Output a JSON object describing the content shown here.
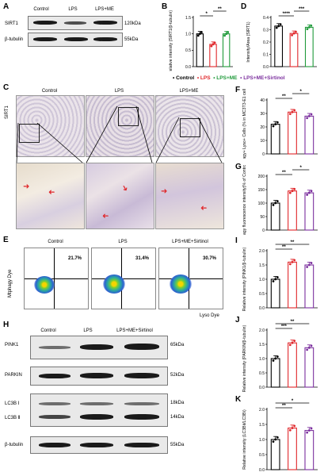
{
  "panels": {
    "A": {
      "letter": "A",
      "lanes": [
        "Control",
        "LPS",
        "LPS+ME"
      ],
      "rows": [
        {
          "label": "SIRT1",
          "kda": "120kDa"
        },
        {
          "label": "β-tubulin",
          "kda": "55kDa"
        }
      ]
    },
    "B": {
      "letter": "B"
    },
    "C": {
      "letter": "C",
      "row_label": "SIRT1",
      "titles": [
        "Control",
        "LPS",
        "LPS+ME"
      ]
    },
    "D": {
      "letter": "D"
    },
    "E": {
      "letter": "E",
      "titles": [
        "Control",
        "LPS",
        "LPS+ME+Sirtinol"
      ],
      "percents": [
        "21.7%",
        "31.4%",
        "30.7%"
      ],
      "ylabel": "Mtphagy Dye",
      "xlabel": "Lyso Dye"
    },
    "F": {
      "letter": "F"
    },
    "G": {
      "letter": "G"
    },
    "H": {
      "letter": "H",
      "lanes": [
        "Control",
        "LPS",
        "LPS+ME+Sirtinol"
      ],
      "rows": [
        {
          "label": "PINK1",
          "kda": "65kDa"
        },
        {
          "label": "PARKIN",
          "kda": "52kDa"
        },
        {
          "label": "LC3B Ⅰ",
          "kda": "18kDa"
        },
        {
          "label": "LC3B Ⅱ",
          "kda": "14kDa"
        },
        {
          "label": "β-tubulin",
          "kda": "55kDa"
        }
      ]
    },
    "I": {
      "letter": "I"
    },
    "J": {
      "letter": "J"
    },
    "K": {
      "letter": "K"
    }
  },
  "legend": [
    {
      "label": "Control",
      "color": "#000000"
    },
    {
      "label": "LPS",
      "color": "#e0272b"
    },
    {
      "label": "LPS+ME",
      "color": "#1f9a3a"
    },
    {
      "label": "LPS+ME+Sirtinol",
      "color": "#7b2f9e"
    }
  ],
  "colors": {
    "control": "#000000",
    "lps": "#e0272b",
    "me": "#1f9a3a",
    "sirtinol": "#7b2f9e"
  },
  "chart_data": [
    {
      "id": "B",
      "type": "bar",
      "ylabel": "Relative intensity (SIRT1/β-tubulin)",
      "ylim": [
        0,
        1.5
      ],
      "yticks": [
        "0.0",
        "0.5",
        "1.0",
        "1.5"
      ],
      "groups": [
        "Control",
        "LPS",
        "LPS+ME"
      ],
      "values": [
        1.0,
        0.68,
        1.0
      ],
      "colors": [
        "#000000",
        "#e0272b",
        "#1f9a3a"
      ],
      "sig": [
        {
          "from": 0,
          "to": 1,
          "text": "*"
        },
        {
          "from": 1,
          "to": 2,
          "text": "**"
        }
      ]
    },
    {
      "id": "D",
      "type": "bar",
      "ylabel": "Intensity/Area (SIRT1)",
      "ylim": [
        0,
        0.4
      ],
      "yticks": [
        "0.0",
        "0.1",
        "0.2",
        "0.3",
        "0.4"
      ],
      "groups": [
        "Control",
        "LPS",
        "LPS+ME"
      ],
      "values": [
        0.33,
        0.27,
        0.32
      ],
      "colors": [
        "#000000",
        "#e0272b",
        "#1f9a3a"
      ],
      "sig": [
        {
          "from": 0,
          "to": 1,
          "text": "****"
        },
        {
          "from": 1,
          "to": 2,
          "text": "***"
        }
      ]
    },
    {
      "id": "F",
      "type": "bar",
      "ylabel": "Mtphagy+ Lyso+ Cells (% in MC3T3-E1 cells)",
      "ylim": [
        0,
        40
      ],
      "yticks": [
        "0",
        "10",
        "20",
        "30",
        "40"
      ],
      "groups": [
        "Control",
        "LPS",
        "LPS+ME+Sirtinol"
      ],
      "values": [
        22,
        31,
        28
      ],
      "colors": [
        "#000000",
        "#e0272b",
        "#7b2f9e"
      ],
      "sig": [
        {
          "from": 0,
          "to": 1,
          "text": "**"
        },
        {
          "from": 1,
          "to": 2,
          "text": "*"
        }
      ]
    },
    {
      "id": "G",
      "type": "bar",
      "ylabel": "Mtphagy fluorescence intensity(% of Control)",
      "ylim": [
        0,
        200
      ],
      "yticks": [
        "0",
        "50",
        "100",
        "150",
        "200"
      ],
      "groups": [
        "Control",
        "LPS",
        "LPS+ME+Sirtinol"
      ],
      "values": [
        100,
        145,
        138
      ],
      "colors": [
        "#000000",
        "#e0272b",
        "#7b2f9e"
      ],
      "sig": [
        {
          "from": 0,
          "to": 1,
          "text": "**"
        },
        {
          "from": 1,
          "to": 2,
          "text": "*"
        }
      ]
    },
    {
      "id": "I",
      "type": "bar",
      "ylabel": "Relative intensity (PINK1/β-tubulin)",
      "ylim": [
        0,
        2.0
      ],
      "yticks": [
        "0.0",
        "0.5",
        "1.0",
        "1.5",
        "2.0"
      ],
      "groups": [
        "Control",
        "LPS",
        "LPS+ME+Sirtinol"
      ],
      "values": [
        1.0,
        1.6,
        1.5
      ],
      "colors": [
        "#000000",
        "#e0272b",
        "#7b2f9e"
      ],
      "sig": [
        {
          "from": 0,
          "to": 1,
          "text": "**"
        },
        {
          "from": 0,
          "to": 2,
          "text": "**"
        }
      ]
    },
    {
      "id": "J",
      "type": "bar",
      "ylabel": "Relative intensity (PARKIN/β-tubulin)",
      "ylim": [
        0,
        2.0
      ],
      "yticks": [
        "0.0",
        "0.5",
        "1.0",
        "1.5",
        "2.0"
      ],
      "groups": [
        "Control",
        "LPS",
        "LPS+ME+Sirtinol"
      ],
      "values": [
        1.0,
        1.55,
        1.38
      ],
      "colors": [
        "#000000",
        "#e0272b",
        "#7b2f9e"
      ],
      "sig": [
        {
          "from": 0,
          "to": 1,
          "text": "***"
        },
        {
          "from": 0,
          "to": 2,
          "text": "**"
        }
      ]
    },
    {
      "id": "K",
      "type": "bar",
      "ylabel": "Relative intensity (LC3BⅡ/LC3BⅠ)",
      "ylim": [
        0,
        2.0
      ],
      "yticks": [
        "0.0",
        "0.5",
        "1.0",
        "1.5",
        "2.0"
      ],
      "groups": [
        "Control",
        "LPS",
        "LPS+ME+Sirtinol"
      ],
      "values": [
        1.0,
        1.38,
        1.3
      ],
      "colors": [
        "#000000",
        "#e0272b",
        "#7b2f9e"
      ],
      "sig": [
        {
          "from": 0,
          "to": 1,
          "text": "**"
        },
        {
          "from": 0,
          "to": 2,
          "text": "*"
        }
      ]
    }
  ]
}
